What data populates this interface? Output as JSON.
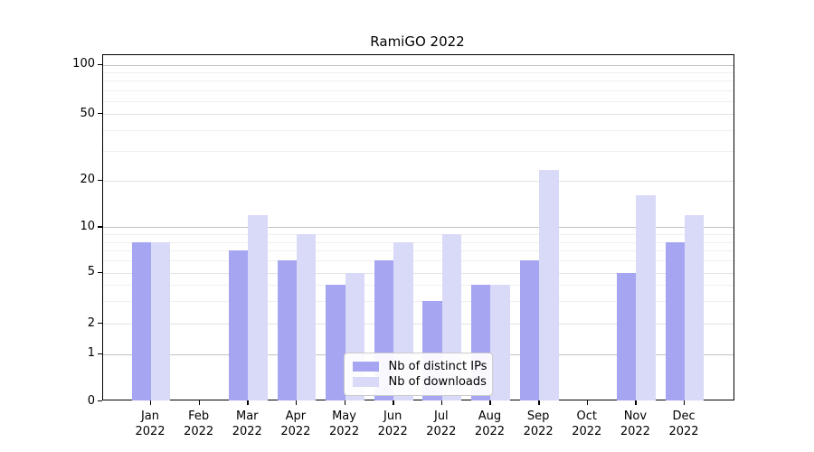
{
  "chart_data": {
    "type": "bar",
    "title": "RamiGO 2022",
    "categories": [
      "Jan 2022",
      "Feb 2022",
      "Mar 2022",
      "Apr 2022",
      "May 2022",
      "Jun 2022",
      "Jul 2022",
      "Aug 2022",
      "Sep 2022",
      "Oct 2022",
      "Nov 2022",
      "Dec 2022"
    ],
    "x_tick_months": [
      "Jan",
      "Feb",
      "Mar",
      "Apr",
      "May",
      "Jun",
      "Jul",
      "Aug",
      "Sep",
      "Oct",
      "Nov",
      "Dec"
    ],
    "x_tick_year": "2022",
    "series": [
      {
        "name": "Nb of distinct IPs",
        "color": "#a5a5f2",
        "values": [
          8,
          0,
          7,
          6,
          4,
          6,
          3,
          4,
          6,
          0,
          5,
          8
        ]
      },
      {
        "name": "Nb of downloads",
        "color": "#d9d9f8",
        "values": [
          8,
          0,
          12,
          9,
          5,
          8,
          9,
          4,
          23,
          0,
          16,
          12
        ]
      }
    ],
    "y_ticks": [
      0,
      1,
      2,
      5,
      10,
      20,
      50,
      100
    ],
    "y_minor_gridlines": [
      3,
      4,
      6,
      7,
      8,
      9,
      30,
      40,
      60,
      70,
      80,
      90
    ],
    "y_scale": "log-like (0,1,2,5,10,20,50,100)",
    "ylim": [
      0,
      125
    ],
    "grid": "on",
    "legend_position": "bottom-center",
    "colors": {
      "grid_decade": "#c2c2c2",
      "grid_labeled": "#e4e4e4",
      "grid_minor": "#f0f0f0",
      "axis": "#000000"
    }
  }
}
